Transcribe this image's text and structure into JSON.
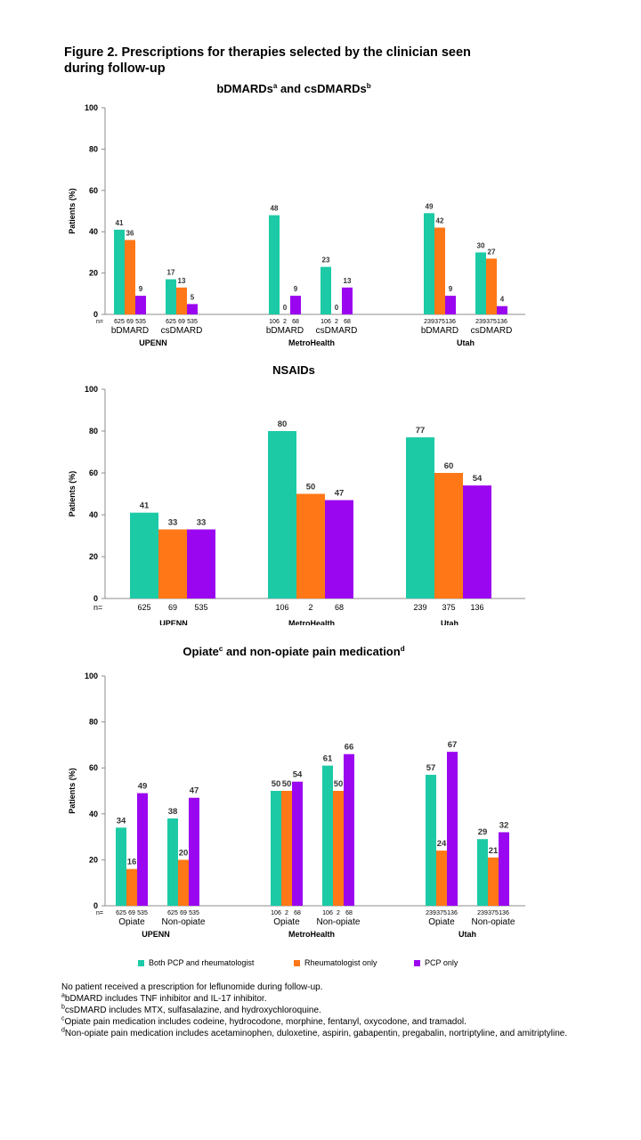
{
  "figure_title": "Figure 2. Prescriptions for therapies selected by the clinician seen during follow-up",
  "colors": {
    "both": "#1ccaa6",
    "rheum": "#ff7716",
    "pcp": "#9b06f0",
    "axis": "#8c8c8c"
  },
  "legend": [
    {
      "key": "both",
      "label": "Both PCP and rheumatologist"
    },
    {
      "key": "rheum",
      "label": "Rheumatologist only"
    },
    {
      "key": "pcp",
      "label": "PCP only"
    }
  ],
  "footnotes": [
    {
      "sup": "",
      "text": "No patient received a prescription for leflunomide during follow-up."
    },
    {
      "sup": "a",
      "text": "bDMARD includes TNF inhibitor and IL-17 inhibitor."
    },
    {
      "sup": "b",
      "text": "csDMARD includes MTX, sulfasalazine, and hydroxychloroquine."
    },
    {
      "sup": "c",
      "text": "Opiate pain medication includes codeine, hydrocodone, morphine, fentanyl, oxycodone, and tramadol."
    },
    {
      "sup": "d",
      "text": "Non-opiate pain medication includes acetaminophen, duloxetine, aspirin, gabapentin, pregabalin, nortriptyline, and amitriptyline."
    }
  ],
  "chart_data": [
    {
      "type": "bar",
      "title": "bDMARDs",
      "title_sup": "a",
      "title_mid": " and csDMARDs",
      "title_sup2": "b",
      "ylabel": "Patients (%)",
      "ylim": [
        0,
        100
      ],
      "yticks": [
        0,
        20,
        40,
        60,
        80,
        100
      ],
      "n_label": "n=",
      "series": [
        {
          "name": "Both PCP and rheumatologist",
          "key": "both"
        },
        {
          "name": "Rheumatologist only",
          "key": "rheum"
        },
        {
          "name": "PCP only",
          "key": "pcp"
        }
      ],
      "groups": [
        {
          "label": "UPENN",
          "subgroups": [
            {
              "label": "bDMARD",
              "values": [
                41,
                36,
                9
              ],
              "n": [
                "625",
                "69",
                "535"
              ]
            },
            {
              "label": "csDMARD",
              "values": [
                17,
                13,
                5
              ],
              "n": [
                "625",
                "69",
                "535"
              ]
            }
          ]
        },
        {
          "label": "MetroHealth",
          "subgroups": [
            {
              "label": "bDMARD",
              "values": [
                48,
                0,
                9
              ],
              "n": [
                "106",
                "2",
                "68"
              ]
            },
            {
              "label": "csDMARD",
              "values": [
                23,
                0,
                13
              ],
              "n": [
                "106",
                "2",
                "68"
              ]
            }
          ]
        },
        {
          "label": "Utah",
          "subgroups": [
            {
              "label": "bDMARD",
              "values": [
                49,
                42,
                9
              ],
              "n": [
                "239",
                "375",
                "136"
              ]
            },
            {
              "label": "csDMARD",
              "values": [
                30,
                27,
                4
              ],
              "n": [
                "239",
                "375",
                "136"
              ]
            }
          ]
        }
      ]
    },
    {
      "type": "bar",
      "title": "NSAIDs",
      "ylabel": "Patients (%)",
      "ylim": [
        0,
        100
      ],
      "yticks": [
        0,
        20,
        40,
        60,
        80,
        100
      ],
      "n_label": "n=",
      "series": [
        {
          "name": "Both PCP and rheumatologist",
          "key": "both"
        },
        {
          "name": "Rheumatologist only",
          "key": "rheum"
        },
        {
          "name": "PCP only",
          "key": "pcp"
        }
      ],
      "groups": [
        {
          "label": "UPENN",
          "subgroups": [
            {
              "label": "",
              "values": [
                41,
                33,
                33
              ],
              "n": [
                "625",
                "69",
                "535"
              ]
            }
          ]
        },
        {
          "label": "MetroHealth",
          "subgroups": [
            {
              "label": "",
              "values": [
                80,
                50,
                47
              ],
              "n": [
                "106",
                "2",
                "68"
              ]
            }
          ]
        },
        {
          "label": "Utah",
          "subgroups": [
            {
              "label": "",
              "values": [
                77,
                60,
                54
              ],
              "n": [
                "239",
                "375",
                "136"
              ]
            }
          ]
        }
      ]
    },
    {
      "type": "bar",
      "title": "Opiate",
      "title_sup": "c",
      "title_mid": " and non-opiate pain medication",
      "title_sup2": "d",
      "ylabel": "Patients (%)",
      "ylim": [
        0,
        100
      ],
      "yticks": [
        0,
        20,
        40,
        60,
        80,
        100
      ],
      "n_label": "n=",
      "series": [
        {
          "name": "Both PCP and rheumatologist",
          "key": "both"
        },
        {
          "name": "Rheumatologist only",
          "key": "rheum"
        },
        {
          "name": "PCP only",
          "key": "pcp"
        }
      ],
      "groups": [
        {
          "label": "UPENN",
          "subgroups": [
            {
              "label": "Opiate",
              "values": [
                34,
                16,
                49
              ],
              "n": [
                "625",
                "69",
                "535"
              ]
            },
            {
              "label": "Non-opiate",
              "values": [
                38,
                20,
                47
              ],
              "n": [
                "625",
                "69",
                "535"
              ]
            }
          ]
        },
        {
          "label": "MetroHealth",
          "subgroups": [
            {
              "label": "Opiate",
              "values": [
                50,
                50,
                54
              ],
              "n": [
                "106",
                "2",
                "68"
              ]
            },
            {
              "label": "Non-opiate",
              "values": [
                61,
                50,
                66
              ],
              "n": [
                "106",
                "2",
                "68"
              ]
            }
          ]
        },
        {
          "label": "Utah",
          "subgroups": [
            {
              "label": "Opiate",
              "values": [
                57,
                24,
                67
              ],
              "n": [
                "239",
                "375",
                "136"
              ]
            },
            {
              "label": "Non-opiate",
              "values": [
                29,
                21,
                32
              ],
              "n": [
                "239",
                "375",
                "136"
              ]
            }
          ]
        }
      ]
    }
  ]
}
